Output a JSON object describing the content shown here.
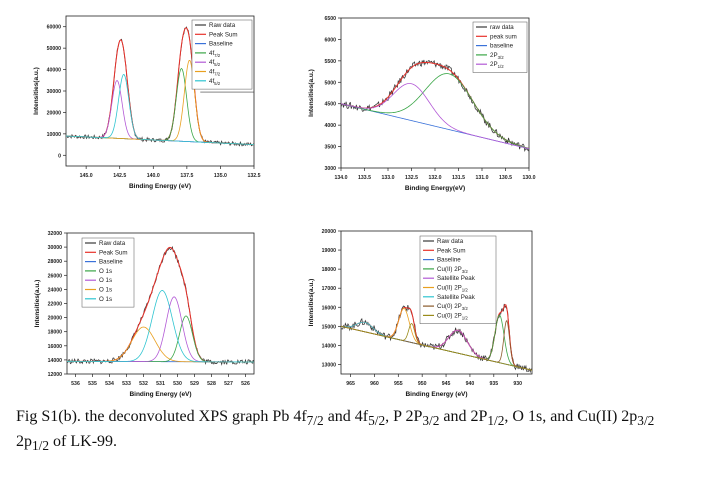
{
  "caption": {
    "lead": "Fig S1(b). the deconvoluted XPS graph Pb 4f",
    "sub1": "7/2",
    "mid1": " and 4f",
    "sub2": "5/2",
    "mid2": ", P 2P",
    "sub3": "3/2",
    "mid3": " and 2P",
    "sub4": "1/2",
    "mid4": ", O 1s, and Cu(II) 2p",
    "sub5": "3/2",
    "line2": "2p",
    "sub6": "1/2",
    "tail": " of LK-99."
  },
  "chart_data": [
    {
      "type": "line",
      "panel": "Pb 4f",
      "xlabel": "Binding Energy (eV)",
      "ylabel": "Intensities(a.u.)",
      "xlim": [
        146.5,
        132.5
      ],
      "ylim": [
        -5000,
        65000
      ],
      "xticks": [
        "145.0",
        "142.5",
        "140.0",
        "137.5",
        "135.0",
        "132.5"
      ],
      "xtick_values": [
        145.0,
        142.5,
        140.0,
        137.5,
        135.0,
        132.5
      ],
      "yticks": [
        "0",
        "10000",
        "20000",
        "30000",
        "40000",
        "50000",
        "60000"
      ],
      "ytick_values": [
        0,
        10000,
        20000,
        30000,
        40000,
        50000,
        60000
      ],
      "baseline_label_y": 29500,
      "legend_position": "top-right",
      "series": [
        {
          "name": "Raw data",
          "color": "#3a3a3a",
          "kind": "sum",
          "noise": 900
        },
        {
          "name": "Peak Sum",
          "color": "#e8312a",
          "kind": "sum"
        },
        {
          "name": "Baseline",
          "color": "#3a72d9",
          "kind": "baseline"
        },
        {
          "name": "4f7/2",
          "color": "#3aa647",
          "kind": "peak",
          "center": 137.9,
          "height": 34000,
          "fwhm": 0.9
        },
        {
          "name": "4f5/2",
          "color": "#b35ad6",
          "kind": "peak",
          "center": 142.7,
          "height": 27000,
          "fwhm": 0.9
        },
        {
          "name": "4f7/2",
          "color": "#e9a020",
          "kind": "peak",
          "center": 137.3,
          "height": 38000,
          "fwhm": 0.9
        },
        {
          "name": "4f5/2",
          "color": "#2ec4d0",
          "kind": "peak",
          "center": 142.2,
          "height": 30000,
          "fwhm": 0.9
        }
      ],
      "baseline": {
        "start": 9000,
        "end": 5000
      }
    },
    {
      "type": "line",
      "panel": "P 2P",
      "xlabel": "Binding Energy(eV)",
      "ylabel": "Intensities(a.u.)",
      "xlim": [
        134.0,
        130.0
      ],
      "ylim": [
        3000,
        6500
      ],
      "xticks": [
        "134.0",
        "133.5",
        "133.0",
        "132.5",
        "132.0",
        "131.5",
        "131.0",
        "130.5",
        "130.0"
      ],
      "xtick_values": [
        134.0,
        133.5,
        133.0,
        132.5,
        132.0,
        131.5,
        131.0,
        130.5,
        130.0
      ],
      "yticks": [
        "3000",
        "3500",
        "4000",
        "4500",
        "5000",
        "5500",
        "6000",
        "6500"
      ],
      "ytick_values": [
        3000,
        3500,
        4000,
        4500,
        5000,
        5500,
        6000,
        6500
      ],
      "legend_position": "top-right",
      "series": [
        {
          "name": "raw data",
          "color": "#3a3a3a",
          "kind": "sum",
          "noise": 80
        },
        {
          "name": "peak sum",
          "color": "#e8312a",
          "kind": "sum"
        },
        {
          "name": "baseline",
          "color": "#3a72d9",
          "kind": "baseline"
        },
        {
          "name": "2P3/2",
          "color": "#3aa647",
          "kind": "peak",
          "center": 131.7,
          "height": 1300,
          "fwhm": 1.2
        },
        {
          "name": "2P1/2",
          "color": "#b35ad6",
          "kind": "peak",
          "center": 132.5,
          "height": 860,
          "fwhm": 0.9
        }
      ],
      "baseline": {
        "start": 4500,
        "end": 3450
      }
    },
    {
      "type": "line",
      "panel": "O 1s",
      "xlabel": "Binding Energy (eV)",
      "ylabel": "Intensities(a.u.)",
      "xlim": [
        536.5,
        525.5
      ],
      "ylim": [
        12000,
        32000
      ],
      "xticks": [
        "536",
        "535",
        "534",
        "533",
        "532",
        "531",
        "530",
        "529",
        "528",
        "527",
        "526"
      ],
      "xtick_values": [
        536,
        535,
        534,
        533,
        532,
        531,
        530,
        529,
        528,
        527,
        526
      ],
      "yticks": [
        "12000",
        "14000",
        "16000",
        "18000",
        "20000",
        "22000",
        "24000",
        "26000",
        "28000",
        "30000",
        "32000"
      ],
      "ytick_values": [
        12000,
        14000,
        16000,
        18000,
        20000,
        22000,
        24000,
        26000,
        28000,
        30000,
        32000
      ],
      "legend_position": "top-left",
      "series": [
        {
          "name": "Raw data",
          "color": "#3a3a3a",
          "kind": "sum",
          "noise": 350
        },
        {
          "name": "Peak Sum",
          "color": "#e8312a",
          "kind": "sum"
        },
        {
          "name": "Baseline",
          "color": "#3a72d9",
          "kind": "baseline"
        },
        {
          "name": "O 1s",
          "color": "#3aa647",
          "kind": "peak",
          "center": 529.5,
          "height": 6500,
          "fwhm": 0.9
        },
        {
          "name": "O 1s",
          "color": "#b35ad6",
          "kind": "peak",
          "center": 530.2,
          "height": 9200,
          "fwhm": 1.1
        },
        {
          "name": "O 1s",
          "color": "#e9a020",
          "kind": "peak",
          "center": 532.0,
          "height": 4900,
          "fwhm": 1.6
        },
        {
          "name": "O 1s",
          "color": "#2ec4d0",
          "kind": "peak",
          "center": 530.9,
          "height": 10100,
          "fwhm": 1.4
        }
      ],
      "baseline": {
        "start": 13800,
        "end": 13700
      }
    },
    {
      "type": "line",
      "panel": "Cu 2P",
      "xlabel": "Binding Energy (eV)",
      "ylabel": "Intensities(a.u.)",
      "xlim": [
        967,
        927
      ],
      "ylim": [
        12500,
        20000
      ],
      "xticks": [
        "965",
        "960",
        "955",
        "950",
        "945",
        "940",
        "935",
        "930"
      ],
      "xtick_values": [
        965,
        960,
        955,
        950,
        945,
        940,
        935,
        930
      ],
      "yticks": [
        "13000",
        "14000",
        "15000",
        "16000",
        "17000",
        "18000",
        "19000",
        "20000"
      ],
      "ytick_values": [
        13000,
        14000,
        15000,
        16000,
        17000,
        18000,
        19000,
        20000
      ],
      "legend_position": "top-center",
      "series": [
        {
          "name": "Raw data",
          "color": "#3a3a3a",
          "kind": "sum",
          "noise": 180
        },
        {
          "name": "Peak Sum",
          "color": "#e8312a",
          "kind": "sum"
        },
        {
          "name": "Baseline",
          "color": "#3a72d9",
          "kind": "baseline"
        },
        {
          "name": "Cu(II) 2P3/2",
          "color": "#3aa647",
          "kind": "peak",
          "center": 933.8,
          "height": 2500,
          "fwhm": 2.2
        },
        {
          "name": "Satellite Peak",
          "color": "#b35ad6",
          "kind": "peak",
          "center": 942.5,
          "height": 1200,
          "fwhm": 4.5
        },
        {
          "name": "Cu(II) 2P1/2",
          "color": "#e9a020",
          "kind": "peak",
          "center": 953.8,
          "height": 1700,
          "fwhm": 2.6
        },
        {
          "name": "Satellite Peak",
          "color": "#2ec4d0",
          "kind": "peak",
          "center": 962.0,
          "height": 500,
          "fwhm": 4.0
        },
        {
          "name": "Cu(0) 2P3/2",
          "color": "#8a5a2b",
          "kind": "peak",
          "center": 932.3,
          "height": 2300,
          "fwhm": 1.4
        },
        {
          "name": "Cu(0) 2P1/2",
          "color": "#9a8b1a",
          "kind": "peak",
          "center": 952.2,
          "height": 1000,
          "fwhm": 1.5
        }
      ],
      "baseline": {
        "start": 15000,
        "end": 12700
      }
    }
  ]
}
